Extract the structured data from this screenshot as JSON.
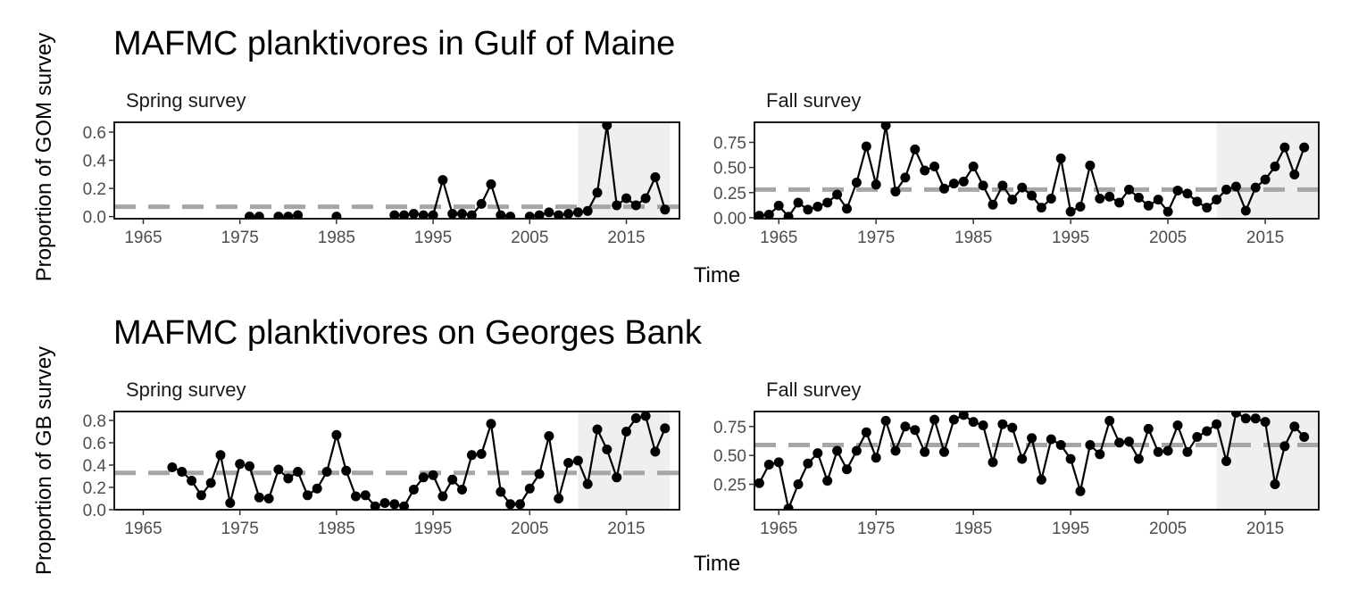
{
  "colors": {
    "line": "#000000",
    "mean_line": "#a6a6a6",
    "shade": "#efefef",
    "panel_border": "#000000",
    "tick_text": "#4d4d4d"
  },
  "chart_data": [
    {
      "type": "line",
      "title": "MAFMC planktivores in Gulf of Maine",
      "ylabel": "Proportion of GOM survey",
      "xlabel": "Time",
      "panels": [
        {
          "strip": "Spring survey",
          "xlim": [
            1962,
            2020.5
          ],
          "ylim": [
            -0.015,
            0.67
          ],
          "xticks": [
            1965,
            1975,
            1985,
            1995,
            2005,
            2015
          ],
          "yticks": [
            0.0,
            0.2,
            0.4,
            0.6
          ],
          "ytick_labels": [
            "0.0",
            "0.2",
            "0.4",
            "0.6"
          ],
          "mean": 0.07,
          "shade": [
            2010,
            2019.5
          ],
          "x": [
            1976,
            1977,
            1979,
            1980,
            1981,
            1985,
            1991,
            1992,
            1993,
            1994,
            1995,
            1996,
            1997,
            1998,
            1999,
            2000,
            2001,
            2002,
            2003,
            2005,
            2006,
            2007,
            2008,
            2009,
            2010,
            2011,
            2012,
            2013,
            2014,
            2015,
            2016,
            2017,
            2018,
            2019
          ],
          "y": [
            0.0,
            0.0,
            0.0,
            0.0,
            0.01,
            0.0,
            0.01,
            0.01,
            0.02,
            0.01,
            0.01,
            0.26,
            0.02,
            0.02,
            0.01,
            0.09,
            0.23,
            0.01,
            0.0,
            0.0,
            0.01,
            0.03,
            0.01,
            0.02,
            0.03,
            0.04,
            0.17,
            0.65,
            0.08,
            0.13,
            0.08,
            0.13,
            0.28,
            0.05
          ]
        },
        {
          "strip": "Fall survey",
          "xlim": [
            1962.5,
            2020.5
          ],
          "ylim": [
            -0.01,
            0.95
          ],
          "xticks": [
            1965,
            1975,
            1985,
            1995,
            2005,
            2015
          ],
          "yticks": [
            0.0,
            0.25,
            0.5,
            0.75
          ],
          "ytick_labels": [
            "0.00",
            "0.25",
            "0.50",
            "0.75"
          ],
          "mean": 0.28,
          "shade": [
            2010,
            2020.5
          ],
          "x": [
            1963,
            1964,
            1965,
            1966,
            1967,
            1968,
            1969,
            1970,
            1971,
            1972,
            1973,
            1974,
            1975,
            1976,
            1977,
            1978,
            1979,
            1980,
            1981,
            1982,
            1983,
            1984,
            1985,
            1986,
            1987,
            1988,
            1989,
            1990,
            1991,
            1992,
            1993,
            1994,
            1995,
            1996,
            1997,
            1998,
            1999,
            2000,
            2001,
            2002,
            2003,
            2004,
            2005,
            2006,
            2007,
            2008,
            2009,
            2010,
            2011,
            2012,
            2013,
            2014,
            2015,
            2016,
            2017,
            2018,
            2019
          ],
          "y": [
            0.02,
            0.03,
            0.12,
            0.01,
            0.15,
            0.08,
            0.11,
            0.15,
            0.23,
            0.09,
            0.35,
            0.71,
            0.33,
            0.92,
            0.26,
            0.4,
            0.68,
            0.47,
            0.51,
            0.29,
            0.34,
            0.36,
            0.51,
            0.32,
            0.13,
            0.32,
            0.18,
            0.3,
            0.22,
            0.1,
            0.19,
            0.59,
            0.06,
            0.11,
            0.52,
            0.19,
            0.21,
            0.15,
            0.28,
            0.2,
            0.12,
            0.18,
            0.06,
            0.27,
            0.24,
            0.16,
            0.1,
            0.18,
            0.28,
            0.31,
            0.07,
            0.3,
            0.38,
            0.51,
            0.7,
            0.43,
            0.7
          ]
        }
      ]
    },
    {
      "type": "line",
      "title": "MAFMC planktivores on Georges Bank",
      "ylabel": "Proportion of GB survey",
      "xlabel": "Time",
      "panels": [
        {
          "strip": "Spring survey",
          "xlim": [
            1962,
            2020.5
          ],
          "ylim": [
            0.0,
            0.88
          ],
          "xticks": [
            1965,
            1975,
            1985,
            1995,
            2005,
            2015
          ],
          "yticks": [
            0.0,
            0.2,
            0.4,
            0.6,
            0.8
          ],
          "ytick_labels": [
            "0.0",
            "0.2",
            "0.4",
            "0.6",
            "0.8"
          ],
          "mean": 0.33,
          "shade": [
            2010,
            2019.5
          ],
          "x": [
            1968,
            1969,
            1970,
            1971,
            1972,
            1973,
            1974,
            1975,
            1976,
            1977,
            1978,
            1979,
            1980,
            1981,
            1982,
            1983,
            1984,
            1985,
            1986,
            1987,
            1988,
            1989,
            1990,
            1991,
            1992,
            1993,
            1994,
            1995,
            1996,
            1997,
            1998,
            1999,
            2000,
            2001,
            2002,
            2003,
            2004,
            2005,
            2006,
            2007,
            2008,
            2009,
            2010,
            2011,
            2012,
            2013,
            2014,
            2015,
            2016,
            2017,
            2018,
            2019
          ],
          "y": [
            0.38,
            0.34,
            0.26,
            0.13,
            0.24,
            0.49,
            0.06,
            0.41,
            0.39,
            0.11,
            0.1,
            0.36,
            0.28,
            0.34,
            0.13,
            0.19,
            0.34,
            0.67,
            0.35,
            0.12,
            0.13,
            0.03,
            0.06,
            0.05,
            0.03,
            0.18,
            0.29,
            0.31,
            0.12,
            0.27,
            0.18,
            0.49,
            0.5,
            0.77,
            0.16,
            0.05,
            0.05,
            0.19,
            0.32,
            0.66,
            0.1,
            0.42,
            0.44,
            0.23,
            0.72,
            0.54,
            0.29,
            0.7,
            0.82,
            0.84,
            0.52,
            0.73
          ]
        },
        {
          "strip": "Fall survey",
          "xlim": [
            1962.5,
            2020.5
          ],
          "ylim": [
            0.03,
            0.88
          ],
          "xticks": [
            1965,
            1975,
            1985,
            1995,
            2005,
            2015
          ],
          "yticks": [
            0.25,
            0.5,
            0.75
          ],
          "ytick_labels": [
            "0.25",
            "0.50",
            "0.75"
          ],
          "mean": 0.59,
          "shade": [
            2010,
            2020.5
          ],
          "x": [
            1963,
            1964,
            1965,
            1966,
            1967,
            1968,
            1969,
            1970,
            1971,
            1972,
            1973,
            1974,
            1975,
            1976,
            1977,
            1978,
            1979,
            1980,
            1981,
            1982,
            1983,
            1984,
            1985,
            1986,
            1987,
            1988,
            1989,
            1990,
            1991,
            1992,
            1993,
            1994,
            1995,
            1996,
            1997,
            1998,
            1999,
            2000,
            2001,
            2002,
            2003,
            2004,
            2005,
            2006,
            2007,
            2008,
            2009,
            2010,
            2011,
            2012,
            2013,
            2014,
            2015,
            2016,
            2017,
            2018,
            2019
          ],
          "y": [
            0.26,
            0.42,
            0.44,
            0.04,
            0.25,
            0.43,
            0.52,
            0.28,
            0.54,
            0.38,
            0.54,
            0.7,
            0.48,
            0.8,
            0.54,
            0.75,
            0.72,
            0.53,
            0.81,
            0.53,
            0.81,
            0.85,
            0.79,
            0.76,
            0.44,
            0.77,
            0.74,
            0.47,
            0.65,
            0.29,
            0.64,
            0.59,
            0.47,
            0.19,
            0.59,
            0.51,
            0.8,
            0.61,
            0.62,
            0.47,
            0.73,
            0.53,
            0.54,
            0.76,
            0.53,
            0.66,
            0.71,
            0.77,
            0.45,
            0.87,
            0.82,
            0.82,
            0.79,
            0.25,
            0.58,
            0.75,
            0.66
          ]
        }
      ]
    }
  ]
}
